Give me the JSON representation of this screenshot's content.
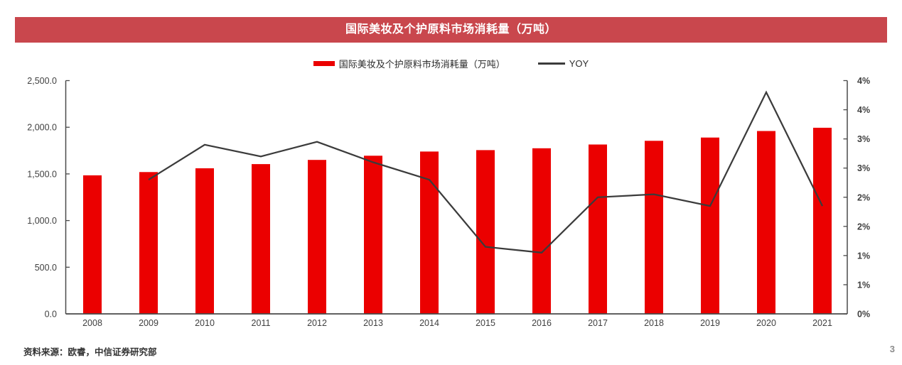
{
  "header": {
    "title": "国际美妆及个护原料市场消耗量（万吨）"
  },
  "legend": [
    {
      "label": "国际美妆及个护原料市场消耗量（万吨）",
      "swatch": "bar",
      "color": "#EB0000"
    },
    {
      "label": "YOY",
      "swatch": "line",
      "color": "#3B3B3B"
    }
  ],
  "footer": {
    "source": "资料来源：欧睿，中信证券研究部",
    "page_number": "3"
  },
  "colors": {
    "title_bar_bg": "#C9474D",
    "title_text": "#FFFFFF",
    "bar_fill": "#EB0000",
    "line_stroke": "#3B3B3B",
    "axis_stroke": "#4A4A4A",
    "axis_text": "#404040"
  },
  "chart_data": {
    "type": "bar",
    "subtype": "bar-with-line-overlay",
    "title": "国际美妆及个护原料市场消耗量（万吨）",
    "categories": [
      "2008",
      "2009",
      "2010",
      "2011",
      "2012",
      "2013",
      "2014",
      "2015",
      "2016",
      "2017",
      "2018",
      "2019",
      "2020",
      "2021"
    ],
    "series": [
      {
        "name": "国际美妆及个护原料市场消耗量（万吨）",
        "type": "bar",
        "axis": "left",
        "unit": "万吨",
        "values": [
          1485,
          1520,
          1560,
          1605,
          1650,
          1695,
          1740,
          1755,
          1775,
          1815,
          1855,
          1890,
          1960,
          1995
        ]
      },
      {
        "name": "YOY",
        "type": "line",
        "axis": "right",
        "unit": "%",
        "values": [
          null,
          2.3,
          2.9,
          2.7,
          2.95,
          2.6,
          2.3,
          1.15,
          1.05,
          2.0,
          2.05,
          1.85,
          3.8,
          1.85
        ]
      }
    ],
    "left_axis": {
      "min": 0,
      "max": 2500,
      "tick_step": 500,
      "tick_labels": [
        "2,500.0",
        "2,000.0",
        "1,500.0",
        "1,000.0",
        "500.0",
        "0.0"
      ]
    },
    "right_axis": {
      "min": 0,
      "max": 4,
      "tick_step": 0.5,
      "tick_labels": [
        "4%",
        "4%",
        "3%",
        "3%",
        "2%",
        "2%",
        "1%",
        "1%",
        "0%"
      ]
    },
    "grid": false,
    "legend_position": "top-center"
  }
}
